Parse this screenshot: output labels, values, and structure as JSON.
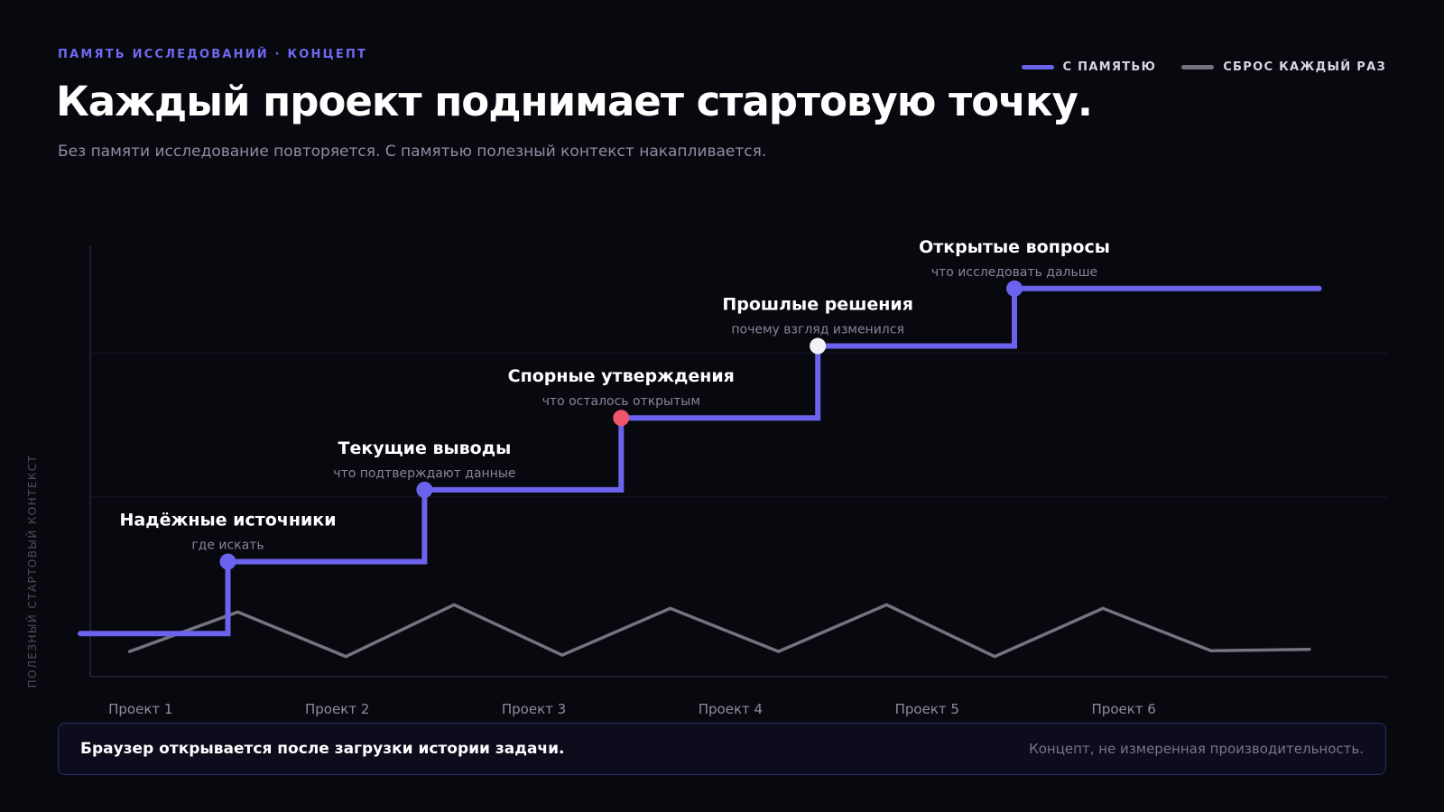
{
  "header": {
    "eyebrow": "ПАМЯТЬ ИССЛЕДОВАНИЙ · КОНЦЕПТ",
    "title": "Каждый проект поднимает стартовую точку.",
    "subtitle": "Без памяти исследование повторяется. С памятью полезный контекст накапливается."
  },
  "legend": [
    {
      "label": "С ПАМЯТЬЮ",
      "color": "#6b63ee"
    },
    {
      "label": "СБРОС КАЖДЫЙ РАЗ",
      "color": "#75737f"
    }
  ],
  "footer": {
    "main": "Браузер открывается после загрузки истории задачи.",
    "note": "Концепт, не измеренная производительность."
  },
  "chart_data": {
    "type": "line",
    "ylabel": "ПОЛЕЗНЫЙ СТАРТОВЫЙ КОНТЕКСТ",
    "xlabel": "",
    "categories": [
      "Проект 1",
      "Проект 2",
      "Проект 3",
      "Проект 4",
      "Проект 5",
      "Проект 6"
    ],
    "xlim": [
      0.9,
      7.5
    ],
    "ylim": [
      0,
      6
    ],
    "grid": true,
    "legend_position": "top-right",
    "series": [
      {
        "name": "С ПАМЯТЬЮ",
        "style": "step",
        "color": "#6b63ee",
        "points": [
          [
            0.85,
            0.6
          ],
          [
            1.6,
            0.6
          ],
          [
            1.6,
            1.6
          ],
          [
            2.6,
            1.6
          ],
          [
            2.6,
            2.6
          ],
          [
            3.6,
            2.6
          ],
          [
            3.6,
            3.6
          ],
          [
            4.6,
            3.6
          ],
          [
            4.6,
            4.6
          ],
          [
            5.6,
            4.6
          ],
          [
            5.6,
            5.4
          ],
          [
            7.15,
            5.4
          ]
        ]
      },
      {
        "name": "СБРОС КАЖДЫЙ РАЗ",
        "style": "line",
        "color": "#75737f",
        "points": [
          [
            1.1,
            0.35
          ],
          [
            1.65,
            0.9
          ],
          [
            2.2,
            0.28
          ],
          [
            2.75,
            1.0
          ],
          [
            3.3,
            0.3
          ],
          [
            3.85,
            0.95
          ],
          [
            4.4,
            0.35
          ],
          [
            4.95,
            1.0
          ],
          [
            5.5,
            0.28
          ],
          [
            6.05,
            0.95
          ],
          [
            6.6,
            0.36
          ],
          [
            7.1,
            0.38
          ]
        ]
      }
    ],
    "milestones": [
      {
        "x": 1.6,
        "y": 1.6,
        "title": "Надёжные источники",
        "caption": "где искать",
        "color": "#6b63ee"
      },
      {
        "x": 2.6,
        "y": 2.6,
        "title": "Текущие выводы",
        "caption": "что подтверждают данные",
        "color": "#6b63ee"
      },
      {
        "x": 3.6,
        "y": 3.6,
        "title": "Спорные утверждения",
        "caption": "что осталось открытым",
        "color": "#f0566c"
      },
      {
        "x": 4.6,
        "y": 4.6,
        "title": "Прошлые решения",
        "caption": "почему взгляд изменился",
        "color": "#f1f1f6"
      },
      {
        "x": 5.6,
        "y": 5.4,
        "title": "Открытые вопросы",
        "caption": "что исследовать дальше",
        "color": "#6b63ee"
      }
    ]
  }
}
